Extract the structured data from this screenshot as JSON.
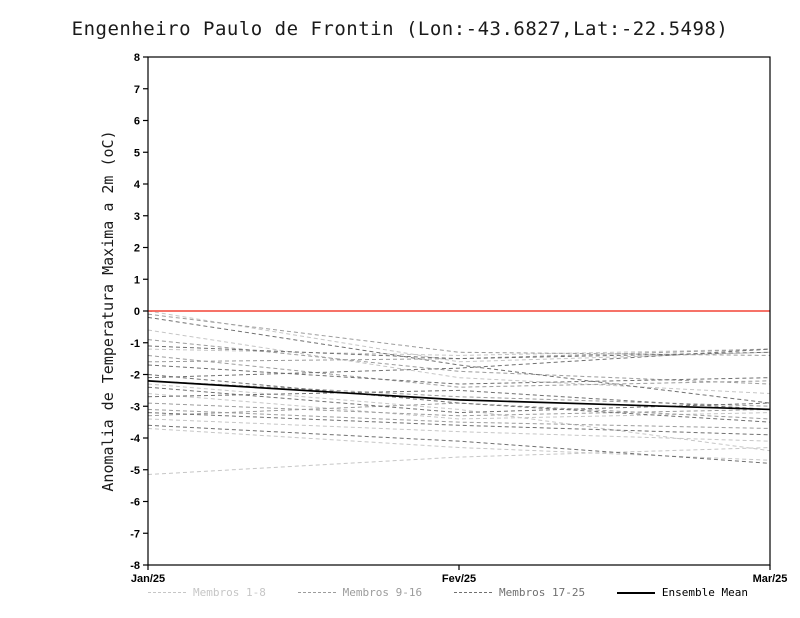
{
  "title": "Engenheiro Paulo de Frontin (Lon:-43.6827,Lat:-22.5498)",
  "ylabel": "Anomalia de Temperatura Maxima a 2m (oC)",
  "colors": {
    "zero_line": "#f44336",
    "axis": "#000000",
    "group1": "#c6c6c6",
    "group2": "#9c9c9c",
    "group3": "#707070",
    "mean": "#000000"
  },
  "chart_data": {
    "type": "line",
    "title": "Engenheiro Paulo de Frontin (Lon:-43.6827,Lat:-22.5498)",
    "ylabel": "Anomalia de Temperatura Maxima a 2m (oC)",
    "xlabel": "",
    "x_categories": [
      "Jan/25",
      "Fev/25",
      "Mar/25"
    ],
    "ylim": [
      -8,
      8
    ],
    "y_ticks": [
      -8,
      -7,
      -6,
      -5,
      -4,
      -3,
      -2,
      -1,
      0,
      1,
      2,
      3,
      4,
      5,
      6,
      7,
      8
    ],
    "grid": false,
    "zero_line": {
      "y": 0,
      "color": "#f44336"
    },
    "legend_position": "bottom",
    "groups": [
      {
        "name": "Membros 1-8",
        "color": "#c6c6c6",
        "style": "dashed",
        "members": [
          [
            0.0,
            -1.6,
            -1.3
          ],
          [
            -0.6,
            -2.1,
            -2.6
          ],
          [
            -1.2,
            -1.4,
            -1.2
          ],
          [
            -2.3,
            -3.1,
            -4.4
          ],
          [
            -3.4,
            -3.8,
            -4.1
          ],
          [
            -3.7,
            -4.3,
            -4.7
          ],
          [
            -5.15,
            -4.6,
            -4.3
          ],
          [
            -2.6,
            -3.4,
            -3.2
          ]
        ]
      },
      {
        "name": "Membros 9-16",
        "color": "#9c9c9c",
        "style": "dashed",
        "members": [
          [
            -0.1,
            -1.3,
            -1.4
          ],
          [
            -0.9,
            -1.9,
            -2.3
          ],
          [
            -1.4,
            -2.4,
            -2.2
          ],
          [
            -1.6,
            -1.5,
            -1.2
          ],
          [
            -2.2,
            -2.7,
            -3.0
          ],
          [
            -2.9,
            -3.3,
            -3.1
          ],
          [
            -3.1,
            -3.5,
            -3.7
          ],
          [
            -3.3,
            -2.9,
            -3.4
          ]
        ]
      },
      {
        "name": "Membros 17-25",
        "color": "#707070",
        "style": "dashed",
        "members": [
          [
            -0.2,
            -1.7,
            -2.9
          ],
          [
            -1.1,
            -1.5,
            -1.3
          ],
          [
            -1.7,
            -2.3,
            -2.1
          ],
          [
            -2.0,
            -2.9,
            -3.5
          ],
          [
            -2.4,
            -3.2,
            -2.9
          ],
          [
            -2.7,
            -2.5,
            -3.1
          ],
          [
            -3.2,
            -3.6,
            -3.9
          ],
          [
            -3.6,
            -4.1,
            -4.8
          ],
          [
            -2.1,
            -1.8,
            -1.2
          ]
        ]
      }
    ],
    "ensemble_mean": {
      "name": "Ensemble Mean",
      "color": "#000000",
      "style": "solid",
      "values": [
        -2.2,
        -2.8,
        -3.1
      ]
    }
  },
  "legend": {
    "items": [
      {
        "label": "Membros 1-8",
        "color": "#c6c6c6",
        "style": "dashed"
      },
      {
        "label": "Membros 9-16",
        "color": "#9c9c9c",
        "style": "dashed"
      },
      {
        "label": "Membros 17-25",
        "color": "#707070",
        "style": "dashed"
      },
      {
        "label": "Ensemble Mean",
        "color": "#000000",
        "style": "solid"
      }
    ]
  }
}
